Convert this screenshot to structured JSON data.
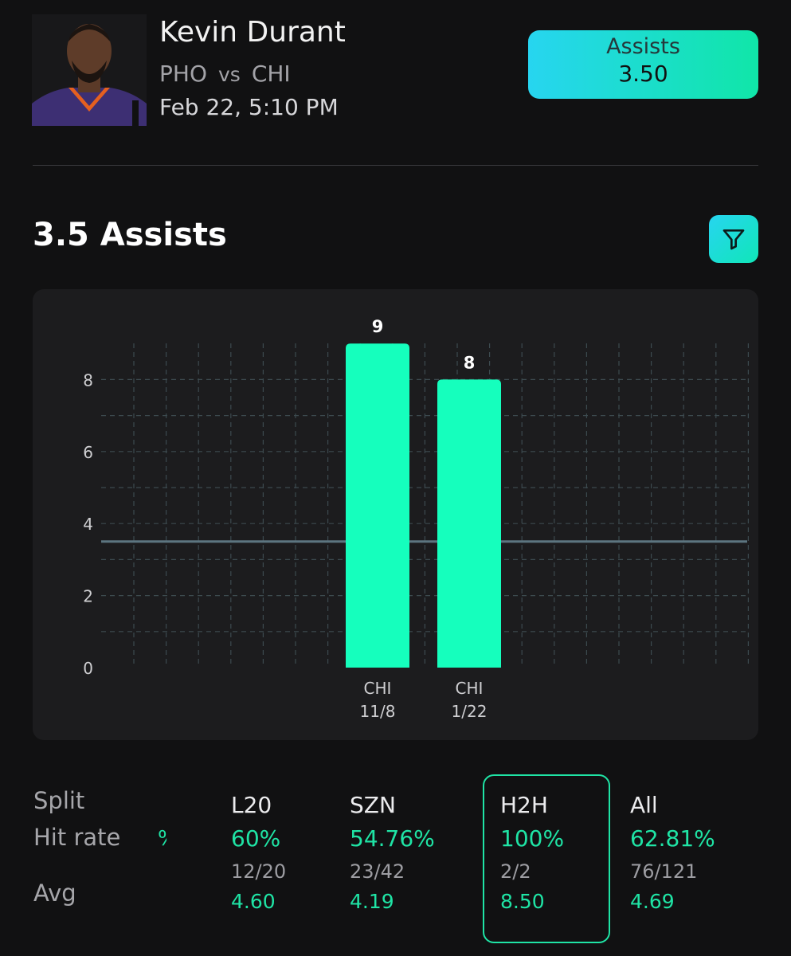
{
  "header": {
    "player_name": "Kevin Durant",
    "team": "PHO",
    "vs": "vs",
    "opponent": "CHI",
    "game_time": "Feb 22, 5:10 PM",
    "badge_label": "Assists",
    "badge_value": "3.50",
    "colors": {
      "accent_start": "#27d5f0",
      "accent_end": "#10e6a8"
    }
  },
  "section": {
    "title": "3.5 Assists",
    "filter_icon": "funnel-icon"
  },
  "chart_data": {
    "type": "bar",
    "y_ticks": [
      "0",
      "2",
      "4",
      "6",
      "8"
    ],
    "ylim": [
      0,
      9
    ],
    "threshold": 3.5,
    "categories": [
      {
        "team": "CHI",
        "date": "11/8"
      },
      {
        "team": "CHI",
        "date": "1/22"
      }
    ],
    "values": [
      9,
      8
    ],
    "value_labels": [
      "9",
      "8"
    ],
    "bar_color": "#15ffbd",
    "grid": true
  },
  "splits": {
    "labels": {
      "split": "Split",
      "hit_rate": "Hit rate",
      "avg": "Avg"
    },
    "cut_glyph": "%",
    "columns": [
      {
        "name": "L20",
        "hit_rate": "60%",
        "count": "12/20",
        "avg": "4.60"
      },
      {
        "name": "SZN",
        "hit_rate": "54.76%",
        "count": "23/42",
        "avg": "4.19"
      },
      {
        "name": "H2H",
        "hit_rate": "100%",
        "count": "2/2",
        "avg": "8.50"
      },
      {
        "name": "All",
        "hit_rate": "62.81%",
        "count": "76/121",
        "avg": "4.69"
      }
    ],
    "selected": "H2H"
  }
}
